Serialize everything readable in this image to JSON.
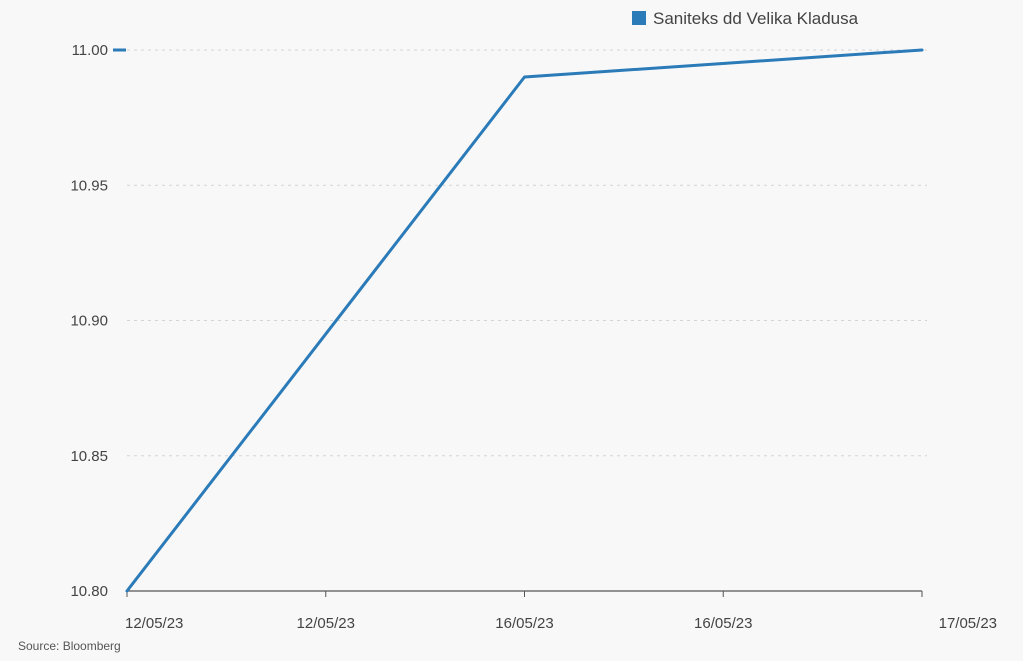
{
  "chart_data": {
    "type": "line",
    "title": "",
    "xlabel": "",
    "ylabel": "",
    "x": [
      "12/05/23",
      "12/05/23",
      "16/05/23",
      "16/05/23",
      "17/05/23"
    ],
    "series": [
      {
        "name": "Saniteks dd Velika Kladusa",
        "color": "#2b7bb9",
        "points": [
          {
            "x": 0,
            "y": 10.8
          },
          {
            "x": 2,
            "y": 10.99
          },
          {
            "x": 4,
            "y": 11.0
          }
        ]
      }
    ],
    "ylim": [
      10.8,
      11.0
    ],
    "yticks": [
      {
        "value": 10.8,
        "label": "10.80"
      },
      {
        "value": 10.85,
        "label": "10.85"
      },
      {
        "value": 10.9,
        "label": "10.90"
      },
      {
        "value": 10.95,
        "label": "10.95"
      },
      {
        "value": 11.0,
        "label": "11.00"
      }
    ],
    "grid": true,
    "legend_position": "top-right",
    "last_value_marker": 11.0
  },
  "source": "Source: Bloomberg"
}
